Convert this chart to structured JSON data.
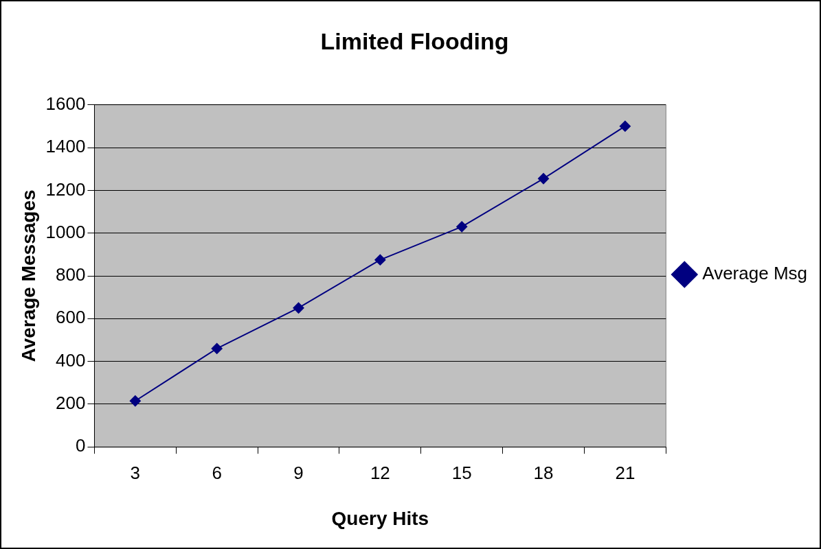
{
  "chart_data": {
    "type": "line",
    "title": "Limited Flooding",
    "xlabel": "Query Hits",
    "ylabel": "Average Messages",
    "categories": [
      "3",
      "6",
      "9",
      "12",
      "15",
      "18",
      "21"
    ],
    "series": [
      {
        "name": "Average Msg",
        "color": "#000080",
        "values": [
          215,
          460,
          650,
          875,
          1030,
          1255,
          1500
        ]
      }
    ],
    "ylim": [
      0,
      1600
    ],
    "yticks": [
      0,
      200,
      400,
      600,
      800,
      1000,
      1200,
      1400,
      1600
    ],
    "grid": "y",
    "legend": "right",
    "marker": "diamond",
    "line_style": "solid"
  }
}
